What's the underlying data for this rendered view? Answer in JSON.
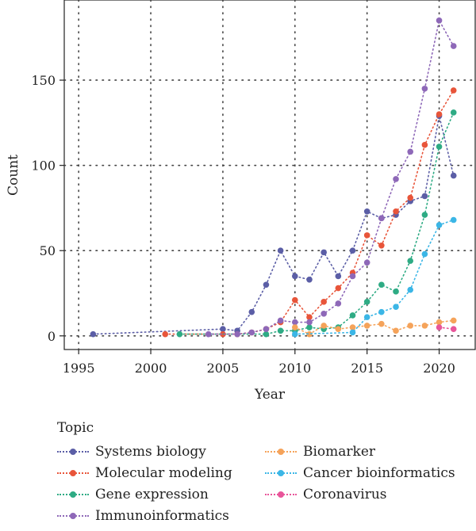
{
  "chart_data": {
    "type": "line",
    "xlabel": "Year",
    "ylabel": "Count",
    "xlim": [
      1994,
      2022.5
    ],
    "ylim": [
      -8,
      197
    ],
    "xticks": [
      1995,
      2000,
      2005,
      2010,
      2015,
      2020
    ],
    "yticks": [
      0,
      50,
      100,
      150
    ],
    "grid": true,
    "legend": {
      "title": "Topic",
      "placement": "bottom"
    },
    "series": [
      {
        "name": "Systems biology",
        "color": "#5B5EA6",
        "points": [
          [
            1996,
            1
          ],
          [
            2005,
            4
          ],
          [
            2006,
            3
          ],
          [
            2007,
            14
          ],
          [
            2008,
            30
          ],
          [
            2009,
            50
          ],
          [
            2010,
            35
          ],
          [
            2011,
            33
          ],
          [
            2012,
            49
          ],
          [
            2013,
            35
          ],
          [
            2014,
            50
          ],
          [
            2015,
            73
          ],
          [
            2016,
            69
          ],
          [
            2017,
            71
          ],
          [
            2018,
            79
          ],
          [
            2019,
            82
          ],
          [
            2020,
            129
          ],
          [
            2021,
            94
          ]
        ]
      },
      {
        "name": "Molecular modeling",
        "color": "#E8553A",
        "points": [
          [
            2001,
            1
          ],
          [
            2005,
            1
          ],
          [
            2006,
            1
          ],
          [
            2007,
            2
          ],
          [
            2008,
            4
          ],
          [
            2009,
            8
          ],
          [
            2010,
            21
          ],
          [
            2011,
            11
          ],
          [
            2012,
            20
          ],
          [
            2013,
            28
          ],
          [
            2014,
            37
          ],
          [
            2015,
            59
          ],
          [
            2016,
            53
          ],
          [
            2017,
            73
          ],
          [
            2018,
            81
          ],
          [
            2019,
            112
          ],
          [
            2020,
            130
          ],
          [
            2021,
            144
          ]
        ]
      },
      {
        "name": "Gene expression",
        "color": "#2EAB84",
        "points": [
          [
            2002,
            1
          ],
          [
            2008,
            1
          ],
          [
            2009,
            3
          ],
          [
            2010,
            3
          ],
          [
            2011,
            5
          ],
          [
            2012,
            4
          ],
          [
            2013,
            5
          ],
          [
            2014,
            12
          ],
          [
            2015,
            20
          ],
          [
            2016,
            30
          ],
          [
            2017,
            26
          ],
          [
            2018,
            44
          ],
          [
            2019,
            71
          ],
          [
            2020,
            111
          ],
          [
            2021,
            131
          ]
        ]
      },
      {
        "name": "Immunoinformatics",
        "color": "#8E68B8",
        "points": [
          [
            2004,
            1
          ],
          [
            2006,
            1
          ],
          [
            2007,
            2
          ],
          [
            2008,
            4
          ],
          [
            2009,
            9
          ],
          [
            2010,
            8
          ],
          [
            2011,
            8
          ],
          [
            2012,
            13
          ],
          [
            2013,
            19
          ],
          [
            2014,
            35
          ],
          [
            2015,
            43
          ],
          [
            2016,
            69
          ],
          [
            2017,
            92
          ],
          [
            2018,
            108
          ],
          [
            2019,
            145
          ],
          [
            2020,
            185
          ],
          [
            2021,
            170
          ]
        ]
      },
      {
        "name": "Biomarker",
        "color": "#F5A35A",
        "points": [
          [
            2010,
            5
          ],
          [
            2011,
            1
          ],
          [
            2012,
            6
          ],
          [
            2013,
            4
          ],
          [
            2014,
            5
          ],
          [
            2015,
            6
          ],
          [
            2016,
            7
          ],
          [
            2017,
            3
          ],
          [
            2018,
            6
          ],
          [
            2019,
            6
          ],
          [
            2020,
            8
          ],
          [
            2021,
            9
          ]
        ]
      },
      {
        "name": "Cancer bioinformatics",
        "color": "#3BB6E6",
        "points": [
          [
            2010,
            1
          ],
          [
            2014,
            2
          ],
          [
            2015,
            11
          ],
          [
            2016,
            14
          ],
          [
            2017,
            17
          ],
          [
            2018,
            27
          ],
          [
            2019,
            48
          ],
          [
            2020,
            65
          ],
          [
            2021,
            68
          ]
        ]
      },
      {
        "name": "Coronavirus",
        "color": "#E8559A",
        "points": [
          [
            2020,
            5
          ],
          [
            2021,
            4
          ]
        ]
      }
    ]
  }
}
